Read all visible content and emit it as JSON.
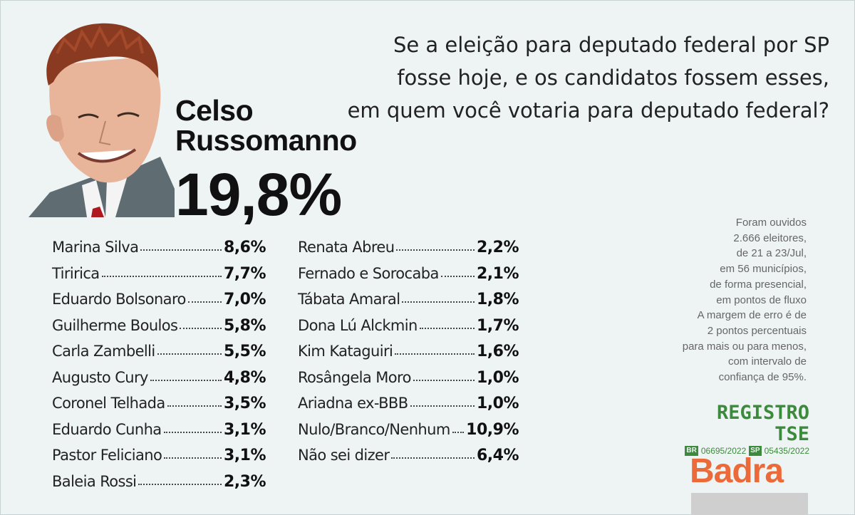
{
  "question": {
    "line1": "Se a eleição para deputado federal por SP",
    "line2": "fosse hoje, e os candidatos fossem esses,",
    "line3": "em quem você votaria para deputado federal?"
  },
  "leader": {
    "name_line1": "Celso",
    "name_line2": "Russomanno",
    "pct": "19,8%"
  },
  "candidates_left": [
    {
      "name": "Marina Silva",
      "pct": "8,6%"
    },
    {
      "name": "Tiririca",
      "pct": "7,7%"
    },
    {
      "name": "Eduardo Bolsonaro",
      "pct": "7,0%"
    },
    {
      "name": "Guilherme Boulos",
      "pct": "5,8%"
    },
    {
      "name": "Carla Zambelli",
      "pct": "5,5%"
    },
    {
      "name": "Augusto Cury",
      "pct": "4,8%"
    },
    {
      "name": "Coronel Telhada",
      "pct": "3,5%"
    },
    {
      "name": "Eduardo Cunha",
      "pct": "3,1%"
    },
    {
      "name": "Pastor Feliciano",
      "pct": "3,1%"
    },
    {
      "name": "Baleia Rossi",
      "pct": "2,3%"
    }
  ],
  "candidates_right": [
    {
      "name": "Renata Abreu",
      "pct": "2,2%"
    },
    {
      "name": "Fernado e Sorocaba",
      "pct": "2,1%"
    },
    {
      "name": "Tábata Amaral",
      "pct": "1,8%"
    },
    {
      "name": "Dona Lú Alckmin",
      "pct": "1,7%"
    },
    {
      "name": "Kim Kataguiri",
      "pct": "1,6%"
    },
    {
      "name": "Rosângela Moro",
      "pct": "1,0%"
    },
    {
      "name": "Ariadna ex-BBB",
      "pct": "1,0%"
    },
    {
      "name": "Nulo/Branco/Nenhum",
      "pct": "10,9%"
    },
    {
      "name": "Não sei dizer",
      "pct": "6,4%"
    }
  ],
  "methodology": [
    "Foram ouvidos",
    "2.666 eleitores,",
    "de 21 a 23/Jul,",
    "em 56 municípios,",
    "de forma presencial,",
    "em pontos de fluxo",
    "A margem de erro é de",
    "2 pontos percentuais",
    "para mais ou para menos,",
    "com intervalo de",
    "confiança de 95%."
  ],
  "registration": {
    "title": "REGISTRO TSE",
    "code_br_tag": "BR",
    "code_br": "06695/2022",
    "code_sp_tag": "SP",
    "code_sp": "05435/2022"
  },
  "brand": {
    "name": "Badra",
    "color": "#ec6a3a"
  },
  "colors": {
    "background": "#eef4f4",
    "tse_green": "#3c8a3c"
  }
}
